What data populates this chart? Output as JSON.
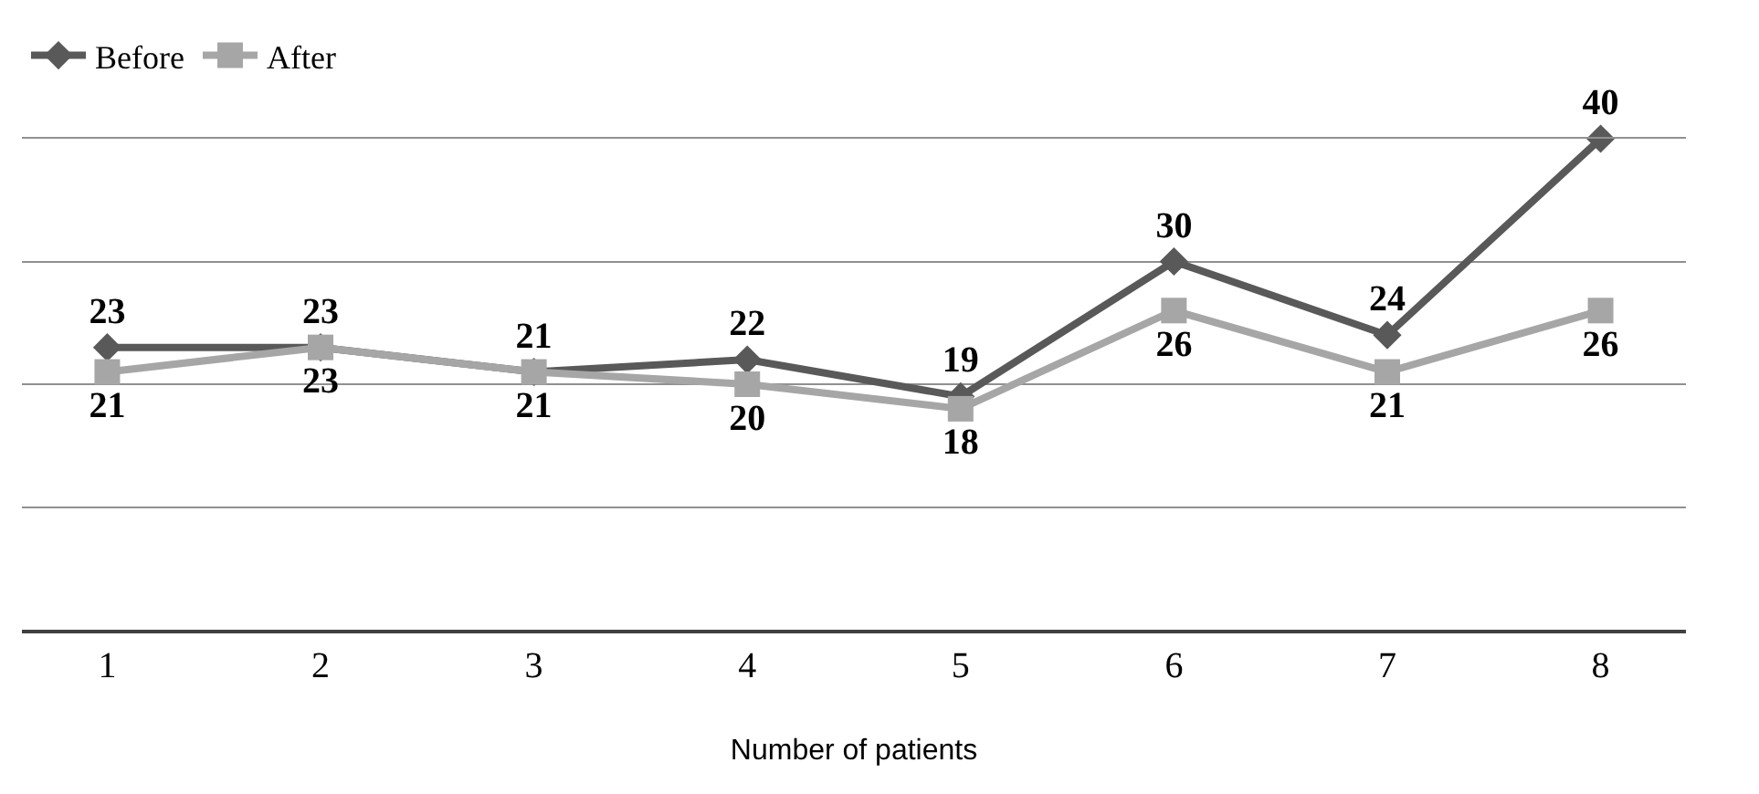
{
  "chart_data": {
    "type": "line",
    "xlabel": "Number of patients",
    "categories": [
      "1",
      "2",
      "3",
      "4",
      "5",
      "6",
      "7",
      "8"
    ],
    "series": [
      {
        "name": "Before",
        "color": "#595959",
        "marker": "diamond",
        "values": [
          23,
          23,
          21,
          22,
          19,
          30,
          24,
          40
        ]
      },
      {
        "name": "After",
        "color": "#a6a6a6",
        "marker": "square",
        "values": [
          21,
          23,
          21,
          20,
          18,
          26,
          21,
          26
        ]
      }
    ],
    "ylim": [
      0,
      40
    ],
    "yticks": [
      {
        "value": 0,
        "label": null
      },
      {
        "value": 10,
        "label": null
      },
      {
        "value": 20,
        "label": null
      },
      {
        "value": 30,
        "label": null
      },
      {
        "value": 40,
        "label": null
      }
    ],
    "grid": "y",
    "legend": "top left",
    "tick_labels": "x",
    "data_labels": true
  }
}
